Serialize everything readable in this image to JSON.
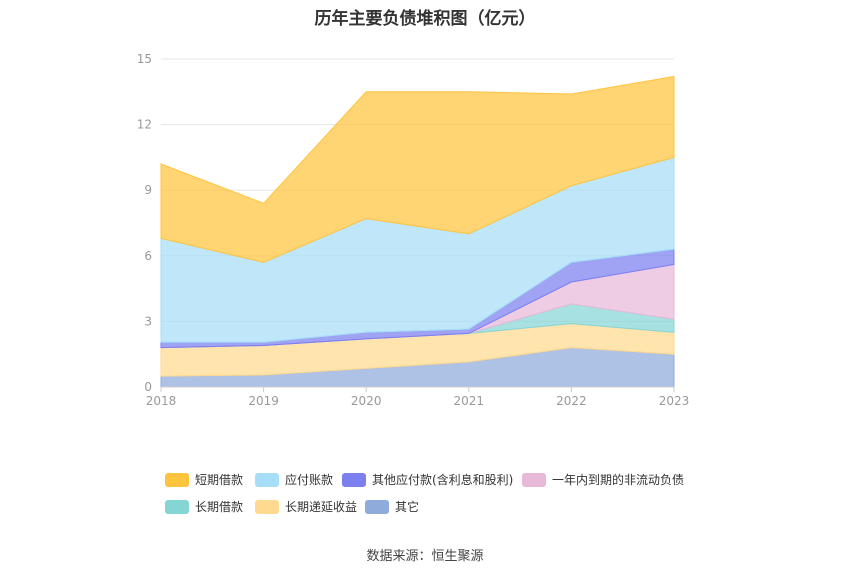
{
  "chart_data": {
    "type": "area",
    "stacked": true,
    "title": "历年主要负债堆积图（亿元）",
    "categories": [
      "2018",
      "2019",
      "2020",
      "2021",
      "2022",
      "2023"
    ],
    "yticks": [
      "0",
      "3",
      "6",
      "9",
      "12",
      "15"
    ],
    "ylim": [
      0,
      15
    ],
    "grid": true,
    "legend_position": "bottom",
    "series": [
      {
        "name": "其它",
        "color": "#8fabdb",
        "values": [
          0.5,
          0.55,
          0.85,
          1.15,
          1.8,
          1.5
        ]
      },
      {
        "name": "长期递延收益",
        "color": "#ffd98f",
        "values": [
          1.3,
          1.35,
          1.35,
          1.3,
          1.1,
          1.0
        ]
      },
      {
        "name": "长期借款",
        "color": "#86d5d5",
        "values": [
          0.0,
          0.0,
          0.0,
          0.0,
          0.9,
          0.6
        ]
      },
      {
        "name": "一年内到期的非流动负债",
        "color": "#e8b8d8",
        "values": [
          0.0,
          0.0,
          0.0,
          0.0,
          1.0,
          2.5
        ]
      },
      {
        "name": "其他应付款(含利息和股利)",
        "color": "#7b7ff0",
        "values": [
          0.25,
          0.15,
          0.3,
          0.2,
          0.9,
          0.7
        ]
      },
      {
        "name": "应付账款",
        "color": "#a6ddf7",
        "values": [
          4.75,
          3.65,
          5.2,
          4.35,
          3.5,
          4.2
        ]
      },
      {
        "name": "短期借款",
        "color": "#ffc43d",
        "values": [
          3.4,
          2.7,
          5.8,
          6.5,
          4.2,
          3.7
        ]
      }
    ],
    "legend_order": [
      "短期借款",
      "应付账款",
      "其他应付款(含利息和股利)",
      "一年内到期的非流动负债",
      "长期借款",
      "长期递延收益",
      "其它"
    ]
  },
  "source": "数据来源：恒生聚源"
}
